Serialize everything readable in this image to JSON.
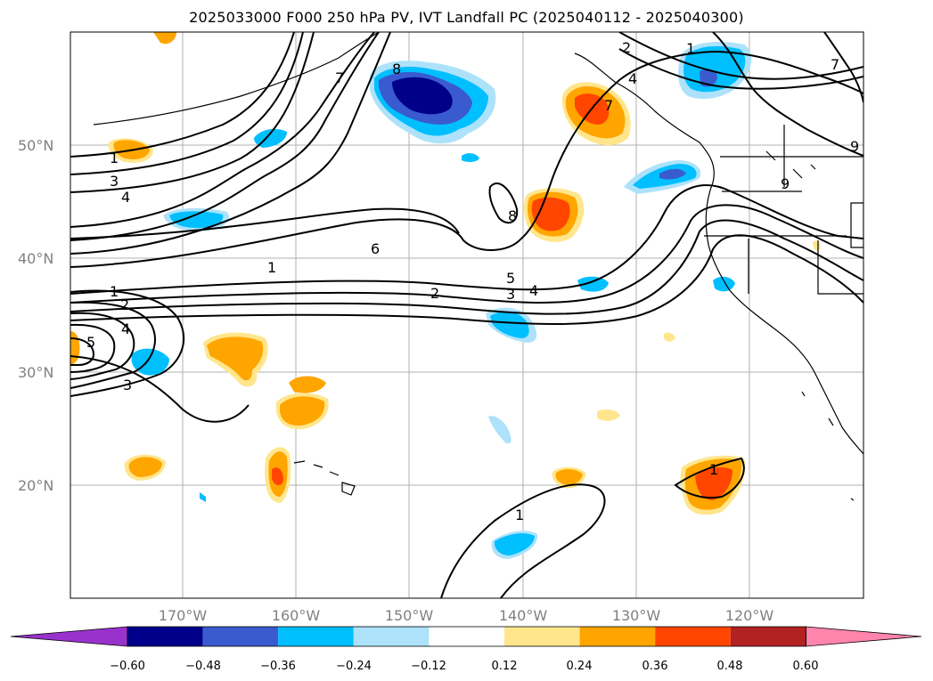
{
  "title": "2025033000 F000 250 hPa PV, IVT Landfall PC (2025040112 - 2025040300)",
  "map": {
    "lon_range": [
      -180,
      -110
    ],
    "lat_range": [
      10,
      60
    ],
    "lat_ticks": [
      "50°N",
      "40°N",
      "30°N",
      "20°N"
    ],
    "lon_ticks": [
      "170°W",
      "160°W",
      "150°W",
      "140°W",
      "130°W",
      "120°W"
    ],
    "gridlines": true,
    "contour_labels": [
      "1",
      "2",
      "3",
      "4",
      "5",
      "6",
      "7",
      "8",
      "9"
    ]
  },
  "colorbar": {
    "extend": "both",
    "tick_labels": [
      "−0.60",
      "−0.48",
      "−0.36",
      "−0.24",
      "−0.12",
      "0.12",
      "0.24",
      "0.36",
      "0.48",
      "0.60"
    ],
    "colors": [
      "#9932cc",
      "#00008b",
      "#3a5bcf",
      "#00bfff",
      "#ade2fa",
      "#ffffff",
      "#ffe68c",
      "#ffa500",
      "#ff4500",
      "#b22222",
      "#ff85ad"
    ]
  }
}
